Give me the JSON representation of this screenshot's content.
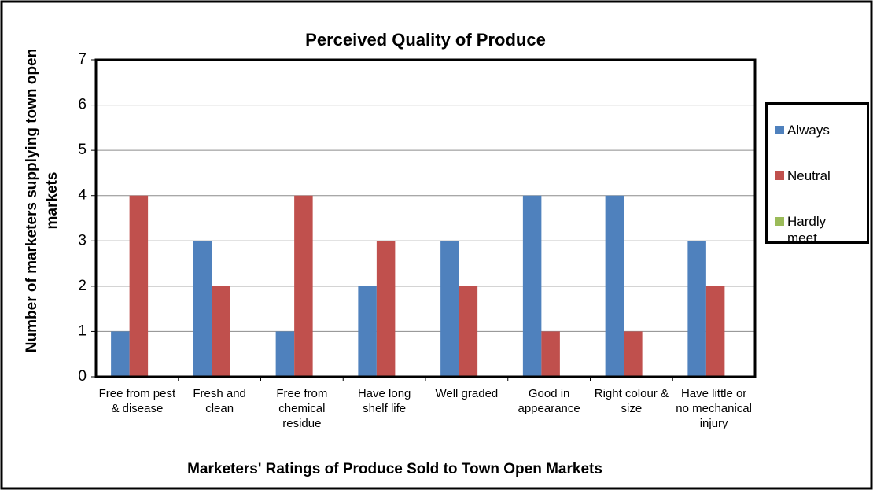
{
  "chart_data": {
    "type": "bar",
    "title": "Perceived Quality of Produce",
    "x_label": "Marketers' Ratings of Produce Sold to Town Open Markets",
    "y_label": "Number of marketers supplying town open markets",
    "categories": [
      "Free from pest & disease",
      "Fresh and clean",
      "Free from chemical residue",
      "Have long shelf life",
      "Well graded",
      "Good in appearance",
      "Right colour & size",
      "Have little or no mechanical injury"
    ],
    "series": [
      {
        "name": "Always",
        "color": "#4f81bd",
        "values": [
          1,
          3,
          1,
          2,
          3,
          4,
          4,
          3
        ]
      },
      {
        "name": "Neutral",
        "color": "#c0504d",
        "values": [
          4,
          2,
          4,
          3,
          2,
          1,
          1,
          2
        ]
      },
      {
        "name": "Hardly meet",
        "color": "#9bbb59",
        "values": [
          0,
          0,
          0,
          0,
          0,
          0,
          0,
          0
        ]
      }
    ],
    "ylim": [
      0,
      7
    ],
    "yticks": [
      0,
      1,
      2,
      3,
      4,
      5,
      6,
      7
    ],
    "grid": true,
    "legend": "right"
  }
}
